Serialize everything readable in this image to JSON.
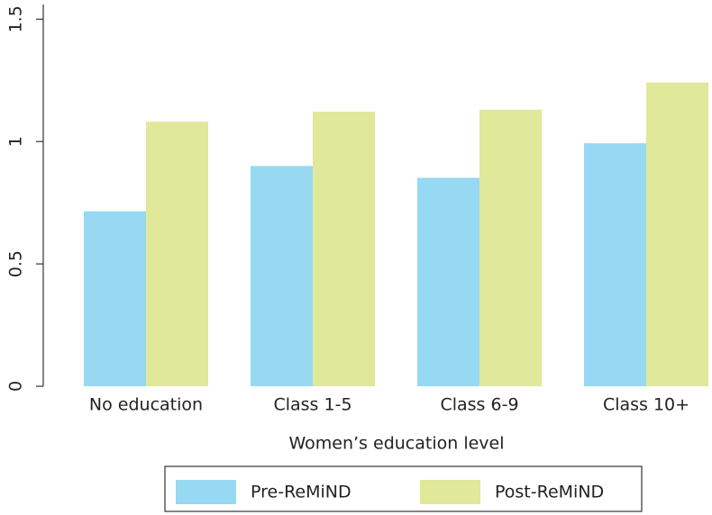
{
  "chart_data": {
    "type": "bar",
    "x_label": "Women’s education level",
    "categories": [
      "No education",
      "Class 1-5",
      "Class 6-9",
      "Class 10+"
    ],
    "series": [
      {
        "name": "Pre-ReMiND",
        "color": "#97d9f2",
        "values": [
          0.715,
          0.9,
          0.852,
          0.993
        ]
      },
      {
        "name": "Post-ReMiND",
        "color": "#e0e89a",
        "values": [
          1.081,
          1.122,
          1.13,
          1.241
        ]
      }
    ],
    "ylim": [
      0,
      1.56
    ],
    "yticks": [
      0,
      0.5,
      1,
      1.5
    ],
    "grid": false,
    "legend": "bottom"
  }
}
